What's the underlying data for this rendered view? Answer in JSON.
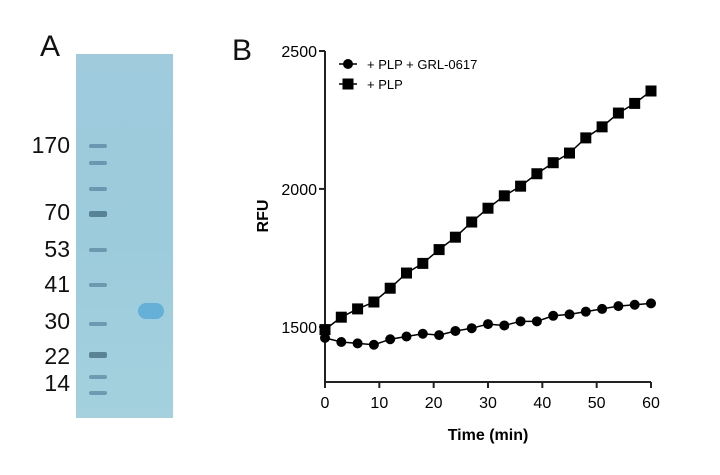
{
  "panel_a": {
    "label": "A",
    "markers": [
      "170",
      "70",
      "53",
      "41",
      "30",
      "22",
      "14"
    ]
  },
  "panel_b": {
    "label": "B"
  },
  "chart_data": {
    "type": "line",
    "xlabel": "Time (min)",
    "ylabel": "RFU",
    "xlim": [
      0,
      60
    ],
    "ylim": [
      1300,
      2500
    ],
    "xticks": [
      0,
      10,
      20,
      30,
      40,
      50,
      60
    ],
    "yticks": [
      1500,
      2000,
      2500
    ],
    "grid": false,
    "legend_position": "top-left",
    "x": [
      0,
      3,
      6,
      9,
      12,
      15,
      18,
      21,
      24,
      27,
      30,
      33,
      36,
      39,
      42,
      45,
      48,
      51,
      54,
      57,
      60
    ],
    "series": [
      {
        "name": "+ PLP + GRL-0617",
        "marker": "circle",
        "values": [
          1460,
          1445,
          1440,
          1435,
          1455,
          1465,
          1475,
          1470,
          1485,
          1495,
          1510,
          1505,
          1520,
          1520,
          1540,
          1545,
          1555,
          1565,
          1575,
          1580,
          1585
        ]
      },
      {
        "name": "+ PLP",
        "marker": "square",
        "values": [
          1490,
          1535,
          1565,
          1590,
          1640,
          1695,
          1730,
          1780,
          1825,
          1880,
          1930,
          1975,
          2010,
          2055,
          2095,
          2130,
          2185,
          2225,
          2275,
          2310,
          2355
        ]
      }
    ],
    "color": "#000000"
  }
}
